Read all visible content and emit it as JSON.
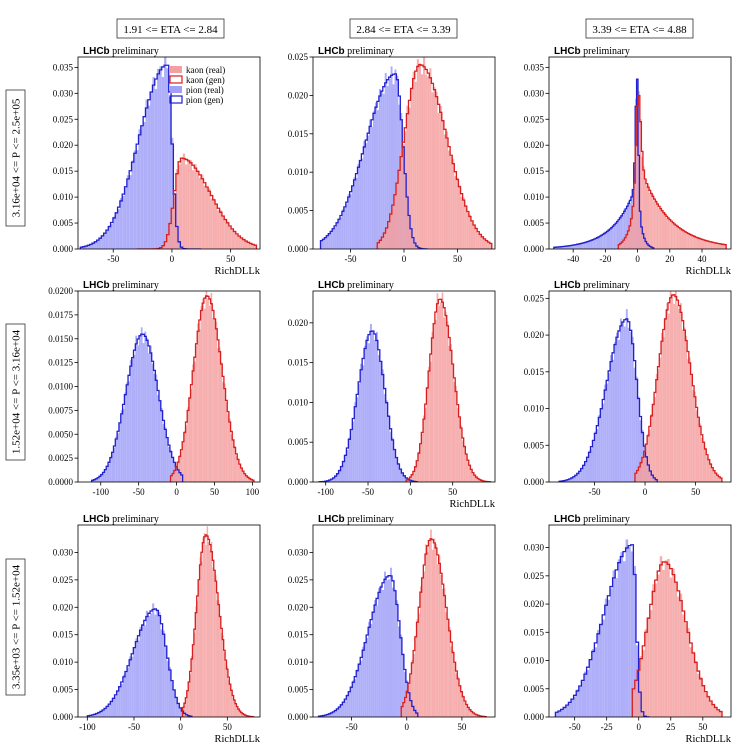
{
  "col_headers": [
    "1.91 <= ETA <= 2.84",
    "2.84 <= ETA <= 3.39",
    "3.39 <= ETA <= 4.88"
  ],
  "row_headers": [
    "3.16e+04 <= P <= 2.5e+05",
    "1.52e+04 <= P <= 3.16e+04",
    "3.35e+03 <= P <= 1.52e+04"
  ],
  "brand": {
    "bold": "LHCb",
    "rest": "preliminary"
  },
  "colors": {
    "kaon_fill": "#f4a0a0",
    "kaon_line": "#d81e1e",
    "pion_fill": "#a0a0f8",
    "pion_line": "#2020d0"
  },
  "legend": [
    "kaon (real)",
    "kaon (gen)",
    "pion (real)",
    "pion (gen)"
  ],
  "chart_data": [
    {
      "type": "bar",
      "panel": "r0c0",
      "xlabel": "RichDLLk",
      "ylabel": "",
      "xlim": [
        -80,
        75
      ],
      "ylim": [
        0,
        0.037
      ],
      "xticks": [
        -50,
        0,
        50
      ],
      "yticks": [
        0,
        0.005,
        0.01,
        0.015,
        0.02,
        0.025,
        0.03,
        0.035
      ],
      "ytick_labels": [
        "0.000",
        "0.005",
        "0.010",
        "0.015",
        "0.020",
        "0.025",
        "0.030",
        "0.035"
      ],
      "series": [
        {
          "name": "kaon",
          "kind": "asym",
          "mu": 8,
          "sl": 6,
          "sr": 25,
          "peak": 0.0175,
          "lo": -30,
          "hi": 72,
          "bins": 52
        },
        {
          "name": "pion",
          "kind": "asym",
          "mu": -4,
          "sl": 24,
          "sr": 4,
          "peak": 0.0355,
          "lo": -78,
          "hi": 25,
          "bins": 52
        }
      ]
    },
    {
      "type": "bar",
      "panel": "r0c1",
      "xlabel": "",
      "ylabel": "",
      "xlim": [
        -85,
        85
      ],
      "ylim": [
        0,
        0.025
      ],
      "xticks": [
        -50,
        0,
        50
      ],
      "yticks": [
        0,
        0.005,
        0.01,
        0.015,
        0.02,
        0.025
      ],
      "ytick_labels": [
        "0.000",
        "0.005",
        "0.010",
        "0.015",
        "0.020",
        "0.025"
      ],
      "series": [
        {
          "name": "kaon",
          "kind": "asym",
          "mu": 15,
          "sl": 15,
          "sr": 25,
          "peak": 0.024,
          "lo": -25,
          "hi": 82,
          "bins": 55
        },
        {
          "name": "pion",
          "kind": "asym",
          "mu": -8,
          "sl": 28,
          "sr": 7,
          "peak": 0.0228,
          "lo": -78,
          "hi": 22,
          "bins": 55
        }
      ]
    },
    {
      "type": "bar",
      "panel": "r0c2",
      "xlabel": "RichDLLk",
      "ylabel": "",
      "xlim": [
        -55,
        58
      ],
      "ylim": [
        0,
        0.037
      ],
      "xticks": [
        -40,
        -20,
        0,
        20,
        40
      ],
      "yticks": [
        0,
        0.005,
        0.01,
        0.015,
        0.02,
        0.025,
        0.03,
        0.035
      ],
      "ytick_labels": [
        "0.000",
        "0.005",
        "0.010",
        "0.015",
        "0.020",
        "0.025",
        "0.030",
        "0.035"
      ],
      "series": [
        {
          "name": "kaon",
          "kind": "cusp",
          "mu": 0.5,
          "sl": 1.5,
          "sr": 1.5,
          "wide_l": 4,
          "wide_r": 18,
          "frac": 0.45,
          "peak": 0.0305,
          "lo": -12,
          "hi": 55,
          "bins": 70
        },
        {
          "name": "pion",
          "kind": "cusp",
          "mu": -0.3,
          "sl": 1,
          "sr": 0.8,
          "wide_l": 14,
          "wide_r": 2.5,
          "frac": 0.62,
          "peak": 0.0335,
          "lo": -52,
          "hi": 10,
          "bins": 70
        }
      ]
    },
    {
      "type": "bar",
      "panel": "r1c0",
      "xlabel": "",
      "ylabel": "",
      "xlim": [
        -130,
        110
      ],
      "ylim": [
        0,
        0.02
      ],
      "xticks": [
        -100,
        -50,
        0,
        50,
        100
      ],
      "yticks": [
        0,
        0.0025,
        0.005,
        0.0075,
        0.01,
        0.0125,
        0.015,
        0.0175,
        0.02
      ],
      "ytick_labels": [
        "0.0000",
        "0.0025",
        "0.0050",
        "0.0075",
        "0.0100",
        "0.0125",
        "0.0150",
        "0.0175",
        "0.0200"
      ],
      "series": [
        {
          "name": "kaon",
          "kind": "asym",
          "mu": 40,
          "sl": 18,
          "sr": 20,
          "peak": 0.0195,
          "lo": -8,
          "hi": 102,
          "bins": 50
        },
        {
          "name": "pion",
          "kind": "asym",
          "mu": -45,
          "sl": 22,
          "sr": 21,
          "peak": 0.0155,
          "lo": -112,
          "hi": 8,
          "bins": 50
        }
      ]
    },
    {
      "type": "bar",
      "panel": "r1c1",
      "xlabel": "RichDLLk",
      "ylabel": "",
      "xlim": [
        -115,
        100
      ],
      "ylim": [
        0,
        0.024
      ],
      "xticks": [
        -100,
        -50,
        0,
        50
      ],
      "yticks": [
        0,
        0.005,
        0.01,
        0.015,
        0.02
      ],
      "ytick_labels": [
        "0.000",
        "0.005",
        "0.010",
        "0.015",
        "0.020"
      ],
      "series": [
        {
          "name": "kaon",
          "kind": "asym",
          "mu": 35,
          "sl": 13,
          "sr": 16,
          "peak": 0.023,
          "lo": -5,
          "hi": 95,
          "bins": 50
        },
        {
          "name": "pion",
          "kind": "asym",
          "mu": -45,
          "sl": 17,
          "sr": 15,
          "peak": 0.019,
          "lo": -108,
          "hi": 8,
          "bins": 50
        }
      ]
    },
    {
      "type": "bar",
      "panel": "r1c2",
      "xlabel": "",
      "ylabel": "",
      "xlim": [
        -95,
        85
      ],
      "ylim": [
        0,
        0.026
      ],
      "xticks": [
        -50,
        0,
        50
      ],
      "yticks": [
        0,
        0.005,
        0.01,
        0.015,
        0.02,
        0.025
      ],
      "ytick_labels": [
        "0.000",
        "0.005",
        "0.010",
        "0.015",
        "0.020",
        "0.025"
      ],
      "series": [
        {
          "name": "kaon",
          "kind": "asym",
          "mu": 28,
          "sl": 15,
          "sr": 17,
          "peak": 0.0255,
          "lo": -10,
          "hi": 76,
          "bins": 50
        },
        {
          "name": "pion",
          "kind": "asym",
          "mu": -18,
          "sl": 20,
          "sr": 10,
          "peak": 0.0222,
          "lo": -85,
          "hi": 12,
          "bins": 50
        }
      ]
    },
    {
      "type": "bar",
      "panel": "r2c0",
      "xlabel": "RichDLLk",
      "ylabel": "",
      "xlim": [
        -110,
        85
      ],
      "ylim": [
        0,
        0.035
      ],
      "xticks": [
        -100,
        -50,
        0,
        50
      ],
      "yticks": [
        0,
        0.005,
        0.01,
        0.015,
        0.02,
        0.025,
        0.03
      ],
      "ytick_labels": [
        "0.000",
        "0.005",
        "0.010",
        "0.015",
        "0.020",
        "0.025",
        "0.030"
      ],
      "series": [
        {
          "name": "kaon",
          "kind": "asym",
          "mu": 27,
          "sl": 10,
          "sr": 14,
          "peak": 0.0332,
          "lo": 2,
          "hi": 78,
          "bins": 50
        },
        {
          "name": "pion",
          "kind": "asym",
          "mu": -27,
          "sl": 24,
          "sr": 12,
          "peak": 0.0197,
          "lo": -100,
          "hi": 12,
          "bins": 50
        }
      ]
    },
    {
      "type": "bar",
      "panel": "r2c1",
      "xlabel": "",
      "ylabel": "",
      "xlim": [
        -85,
        80
      ],
      "ylim": [
        0,
        0.035
      ],
      "xticks": [
        -50,
        0,
        50
      ],
      "yticks": [
        0,
        0.005,
        0.01,
        0.015,
        0.02,
        0.025,
        0.03
      ],
      "ytick_labels": [
        "0.000",
        "0.005",
        "0.010",
        "0.015",
        "0.020",
        "0.025",
        "0.030"
      ],
      "series": [
        {
          "name": "kaon",
          "kind": "asym",
          "mu": 22,
          "sl": 11,
          "sr": 14,
          "peak": 0.0325,
          "lo": -5,
          "hi": 72,
          "bins": 50
        },
        {
          "name": "pion",
          "kind": "asym",
          "mu": -15,
          "sl": 20,
          "sr": 9,
          "peak": 0.0258,
          "lo": -80,
          "hi": 10,
          "bins": 50
        }
      ]
    },
    {
      "type": "bar",
      "panel": "r2c2",
      "xlabel": "RichDLLk",
      "ylabel": "",
      "xlim": [
        -70,
        72
      ],
      "ylim": [
        0,
        0.034
      ],
      "xticks": [
        -50,
        -25,
        0,
        25,
        50
      ],
      "yticks": [
        0,
        0.005,
        0.01,
        0.015,
        0.02,
        0.025,
        0.03
      ],
      "ytick_labels": [
        "0.000",
        "0.005",
        "0.010",
        "0.015",
        "0.020",
        "0.025",
        "0.030"
      ],
      "series": [
        {
          "name": "kaon",
          "kind": "asym",
          "mu": 20,
          "sl": 13,
          "sr": 17,
          "peak": 0.0275,
          "lo": -5,
          "hi": 65,
          "bins": 36
        },
        {
          "name": "pion",
          "kind": "asym",
          "mu": -5,
          "sl": 22,
          "sr": 3,
          "peak": 0.0305,
          "lo": -65,
          "hi": 8,
          "bins": 36
        }
      ]
    }
  ]
}
